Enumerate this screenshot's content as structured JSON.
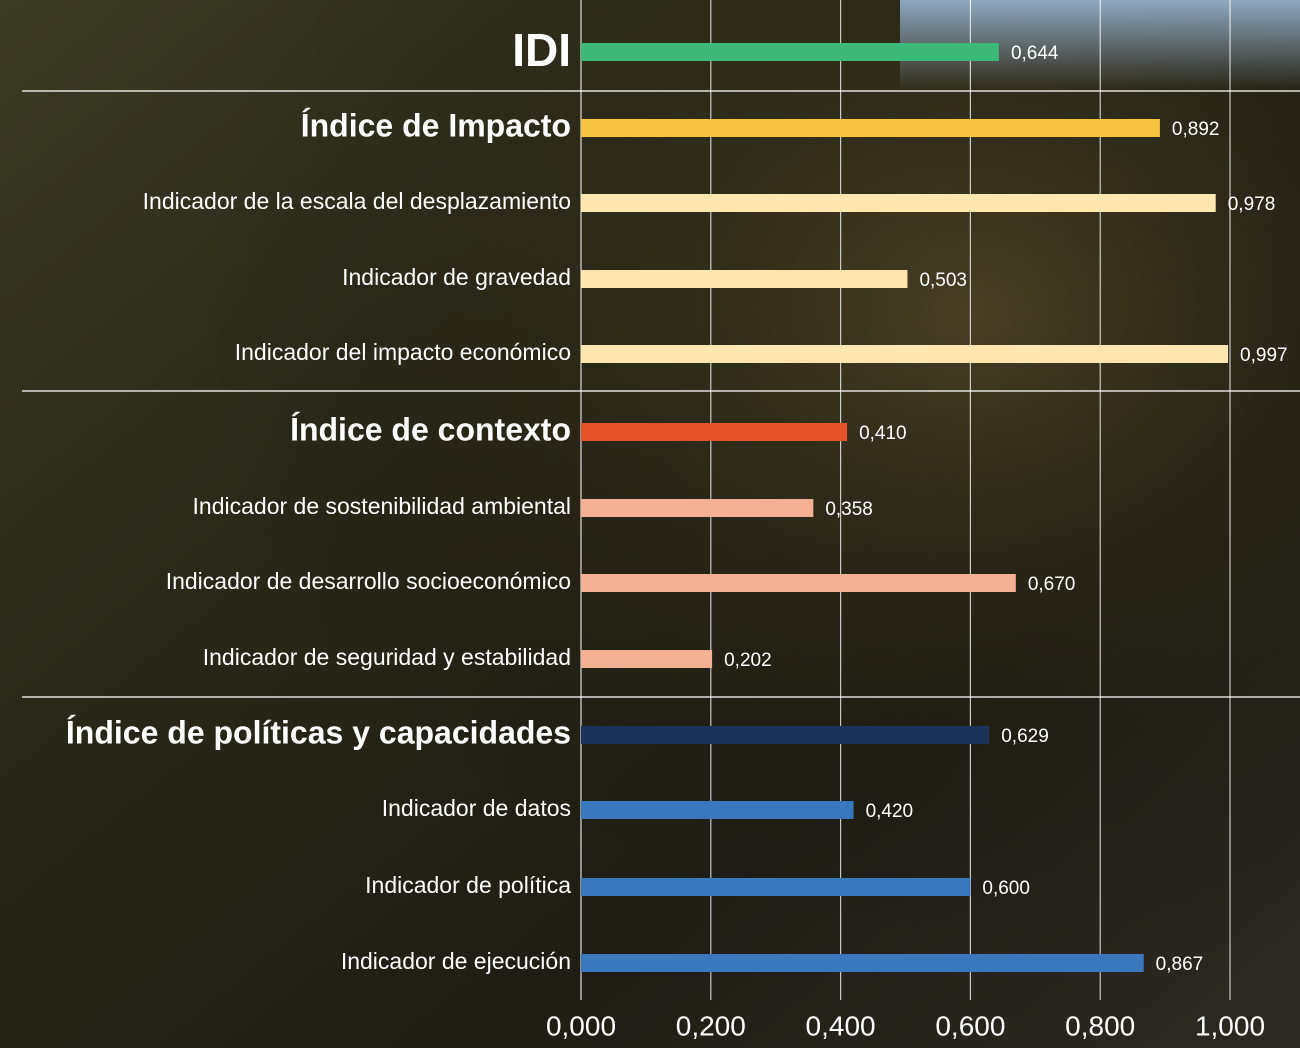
{
  "chart_data": {
    "type": "bar",
    "orientation": "horizontal",
    "categories": [
      "IDI",
      "Índice de Impacto",
      "Indicador de la escala del desplazamiento",
      "Indicador de gravedad",
      "Indicador del impacto económico",
      "Índice de contexto",
      "Indicador de sostenibilidad ambiental",
      "Indicador de desarrollo socioeconómico",
      "Indicador de seguridad y estabilidad",
      "Índice de políticas y capacidades",
      "Indicador de datos",
      "Indicador de política",
      "Indicador de ejecución"
    ],
    "values": [
      0.644,
      0.892,
      0.978,
      0.503,
      0.997,
      0.41,
      0.358,
      0.67,
      0.202,
      0.629,
      0.42,
      0.6,
      0.867
    ],
    "value_labels": [
      "0,644",
      "0,892",
      "0,978",
      "0,503",
      "0,997",
      "0,410",
      "0,358",
      "0,670",
      "0,202",
      "0,629",
      "0,420",
      "0,600",
      "0,867"
    ],
    "colors": [
      "#3cb878",
      "#f9c342",
      "#fde6b0",
      "#fde6b0",
      "#fde6b0",
      "#e4532a",
      "#f4b092",
      "#f4b092",
      "#f4b092",
      "#1b3358",
      "#3a78be",
      "#3a78be",
      "#3a78be"
    ],
    "xlim": [
      0,
      1
    ],
    "xticks": [
      {
        "value": 0,
        "label": "0,000"
      },
      {
        "value": 0.2,
        "label": "0,200"
      },
      {
        "value": 0.4,
        "label": "0,400"
      },
      {
        "value": 0.6,
        "label": "0,600"
      },
      {
        "value": 0.8,
        "label": "0,800"
      },
      {
        "value": 1,
        "label": "1,000"
      }
    ],
    "grid": true
  }
}
